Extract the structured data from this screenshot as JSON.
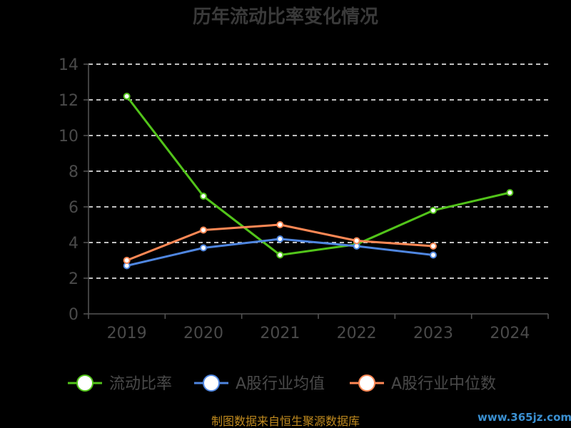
{
  "chart_data": {
    "type": "line",
    "title": "历年流动比率变化情况",
    "categories": [
      "2019",
      "2020",
      "2021",
      "2022",
      "2023",
      "2024"
    ],
    "ylim": [
      0,
      14
    ],
    "yticks": [
      0,
      2,
      4,
      6,
      8,
      10,
      12,
      14
    ],
    "grid": true,
    "legend_position": "bottom",
    "series": [
      {
        "name": "流动比率",
        "color": "#52c41a",
        "values": [
          12.2,
          6.6,
          3.3,
          3.9,
          5.8,
          6.8
        ]
      },
      {
        "name": "A股行业均值",
        "color": "#4f86e0",
        "values": [
          2.7,
          3.7,
          4.2,
          3.8,
          3.3,
          null
        ]
      },
      {
        "name": "A股行业中位数",
        "color": "#ff8855",
        "values": [
          3.0,
          4.7,
          5.0,
          4.1,
          3.8,
          null
        ]
      }
    ]
  },
  "footer": {
    "source": "制图数据来自恒生聚源数据库",
    "watermark": "www.365jz.com"
  }
}
